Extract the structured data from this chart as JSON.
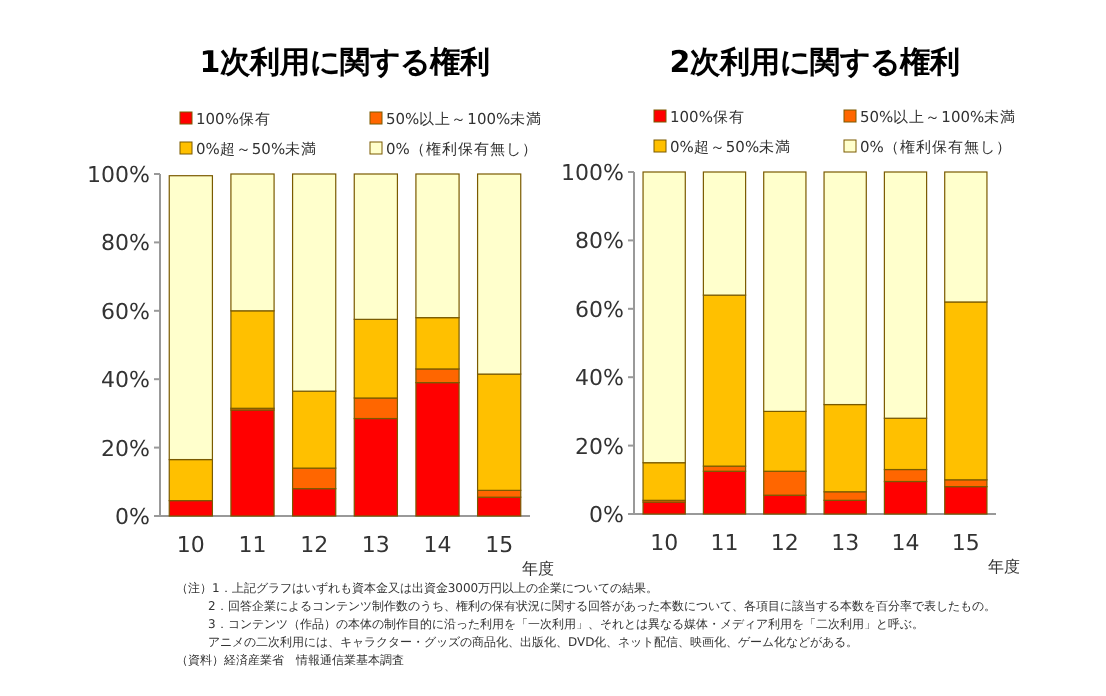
{
  "chart_data": [
    {
      "type": "bar",
      "title": "1次利用に関する権利",
      "xlabel": "年度",
      "categories": [
        "10",
        "11",
        "12",
        "13",
        "14",
        "15"
      ],
      "stacked": true,
      "legend": "top",
      "ylim": [
        0,
        100
      ],
      "yticks": [
        {
          "value": 0,
          "label": "0%"
        },
        {
          "value": 20,
          "label": "20%"
        },
        {
          "value": 40,
          "label": "40%"
        },
        {
          "value": 60,
          "label": "60%"
        },
        {
          "value": 80,
          "label": "80%"
        },
        {
          "value": 100,
          "label": "100%"
        }
      ],
      "series": [
        {
          "name": "100%保有",
          "color": "#ff0000",
          "values": [
            4.5,
            31,
            8,
            28.5,
            39,
            5.5
          ]
        },
        {
          "name": "50%以上～100%未満",
          "color": "#ff6600",
          "values": [
            null,
            0.5,
            6,
            6,
            4,
            2
          ]
        },
        {
          "name": "0%超～50%未満",
          "color": "#ffc000",
          "values": [
            12,
            28.5,
            22.5,
            23,
            15,
            34
          ]
        },
        {
          "name": "0%（権利保有無し）",
          "color": "#ffffcc",
          "values": [
            83,
            40,
            63.5,
            42.5,
            42,
            58.5
          ]
        }
      ]
    },
    {
      "type": "bar",
      "title": "2次利用に関する権利",
      "xlabel": "年度",
      "categories": [
        "10",
        "11",
        "12",
        "13",
        "14",
        "15"
      ],
      "stacked": true,
      "legend": "top",
      "ylim": [
        0,
        100
      ],
      "yticks": [
        {
          "value": 0,
          "label": "0%"
        },
        {
          "value": 20,
          "label": "20%"
        },
        {
          "value": 40,
          "label": "40%"
        },
        {
          "value": 60,
          "label": "60%"
        },
        {
          "value": 80,
          "label": "80%"
        },
        {
          "value": 100,
          "label": "100%"
        }
      ],
      "series": [
        {
          "name": "100%保有",
          "color": "#ff0000",
          "values": [
            3.5,
            12.5,
            5.5,
            4,
            9.5,
            8
          ]
        },
        {
          "name": "50%以上～100%未満",
          "color": "#ff6600",
          "values": [
            0.5,
            1.5,
            7,
            2.5,
            3.5,
            2
          ]
        },
        {
          "name": "0%超～50%未満",
          "color": "#ffc000",
          "values": [
            11,
            50,
            17.5,
            25.5,
            15,
            52
          ]
        },
        {
          "name": "0%（権利保有無し）",
          "color": "#ffffcc",
          "values": [
            85,
            36,
            70,
            68,
            72,
            38
          ]
        }
      ],
      "annotations": [
        "（注）1．上記グラフはいずれも資本金又は出資金3000万円以上の企業についての結果。",
        "2．回答企業によるコンテンツ制作数のうち、権利の保有状況に関する回答があった本数について、各項目に該当する本数を百分率で表したもの。",
        "3．コンテンツ（作品）の本体の制作目的に沿った利用を「一次利用」、それとは異なる媒体・メディア利用を「二次利用」と呼ぶ。",
        "アニメの二次利用には、キャラクター・グッズの商品化、出版化、DVD化、ネット配信、映画化、ゲーム化などがある。",
        "（資料）経済産業省　情報通信業基本調査"
      ]
    }
  ]
}
